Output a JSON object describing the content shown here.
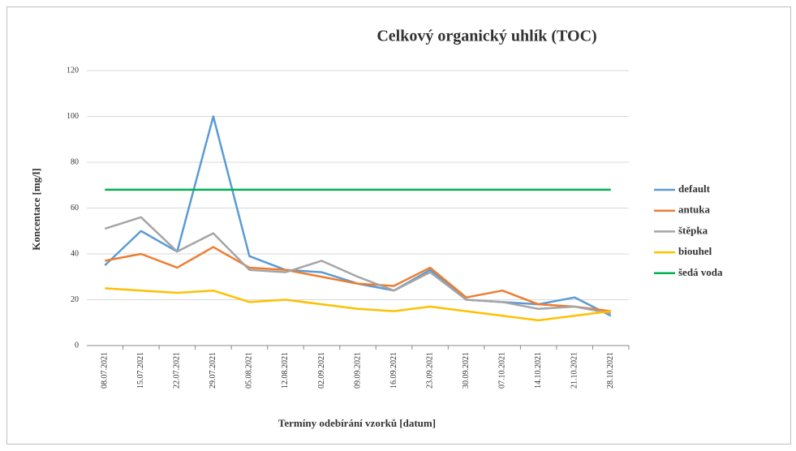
{
  "chart_data": {
    "type": "line",
    "title": "Celkový organický uhlík (TOC)",
    "x_label": "Termíny odebírání vzorků [datum]",
    "y_label": "Koncentace [mg/l]",
    "categories": [
      "08.07.2021",
      "15.07.2021",
      "22.07.2021",
      "29.07.2021",
      "05.08.2021",
      "12.08.2021",
      "02.09.2021",
      "09.09.2021",
      "16.09.2021",
      "23.09.2021",
      "30.09.2021",
      "07.10.2021",
      "14.10.2021",
      "21.10.2021",
      "28.10.2021"
    ],
    "series": [
      {
        "name": "default",
        "color": "#5b9bd5",
        "values": [
          35,
          50,
          41,
          100,
          39,
          33,
          32,
          27,
          24,
          33,
          20,
          19,
          18,
          21,
          13
        ]
      },
      {
        "name": "antuka",
        "color": "#ed7d31",
        "values": [
          37,
          40,
          34,
          43,
          34,
          33,
          30,
          27,
          26,
          34,
          21,
          24,
          18,
          17,
          15
        ]
      },
      {
        "name": "štěpka",
        "color": "#a5a5a5",
        "values": [
          51,
          56,
          41,
          49,
          33,
          32,
          37,
          30,
          24,
          32,
          20,
          19,
          16,
          17,
          14
        ]
      },
      {
        "name": "biouhel",
        "color": "#ffc000",
        "values": [
          25,
          24,
          23,
          24,
          19,
          20,
          18,
          16,
          15,
          17,
          15,
          13,
          11,
          13,
          15
        ]
      },
      {
        "name": "šedá voda",
        "color": "#00b050",
        "values": [
          68,
          68,
          68,
          68,
          68,
          68,
          68,
          68,
          68,
          68,
          68,
          68,
          68,
          68,
          68
        ]
      }
    ],
    "ylim": [
      0,
      120
    ],
    "yticks": [
      0,
      20,
      40,
      60,
      80,
      100,
      120
    ],
    "grid": true,
    "legend": "right"
  }
}
